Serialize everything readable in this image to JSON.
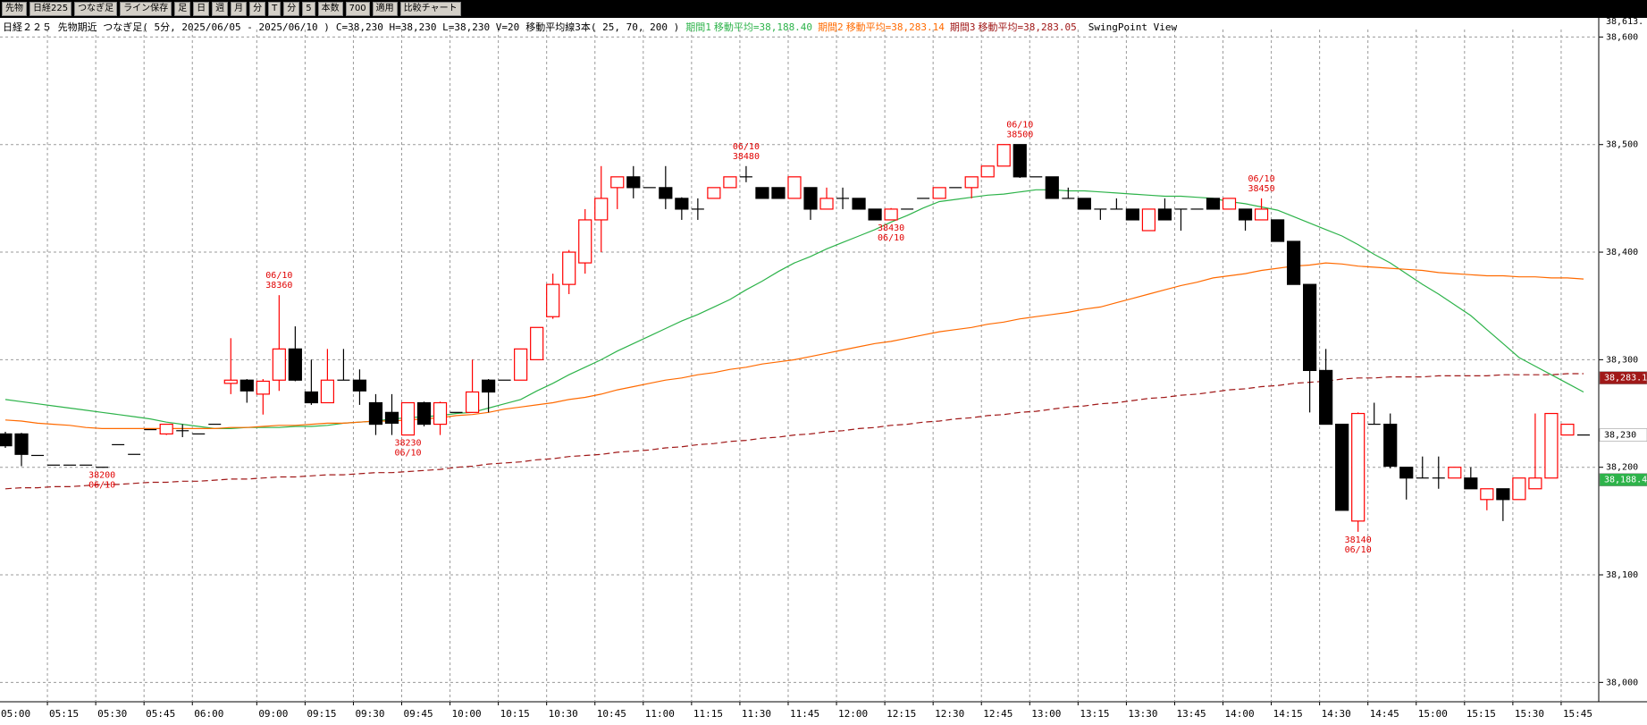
{
  "toolbar": {
    "items": [
      "先物",
      "日経225",
      "つなぎ足",
      "ライン保存",
      "足",
      "日",
      "週",
      "月",
      "分",
      "T",
      "分",
      "5",
      "本数",
      "700",
      "適用",
      "比較チャート"
    ]
  },
  "chart_data": {
    "type": "candlestick",
    "title": "日経２２５ 先物期近 つなぎ足( 5分, 2025/06/05 - 2025/06/10 )",
    "subtitle": "C=38,230 H=38,230 L=38,230 V=20",
    "indicator": "移動平均線3本( 25, 70, 200 )",
    "view": "SwingPoint View",
    "top_label": "38,613.",
    "up_color": "#ff0000",
    "down_color": "#000000",
    "ylim": [
      37982,
      38602
    ],
    "yticks": [
      {
        "value": 38000,
        "label": "38,000"
      },
      {
        "value": 38100,
        "label": "38,100"
      },
      {
        "value": 38200,
        "label": "38,200"
      },
      {
        "value": 38300,
        "label": "38,300"
      },
      {
        "value": 38400,
        "label": "38,400"
      },
      {
        "value": 38500,
        "label": "38,500"
      },
      {
        "value": 38600,
        "label": "38,600"
      }
    ],
    "grid": true,
    "categories": [
      "05:00",
      null,
      null,
      "05:15",
      null,
      null,
      "05:30",
      null,
      null,
      "05:45",
      null,
      null,
      "06:00",
      null,
      null,
      null,
      "09:00",
      null,
      null,
      "09:15",
      null,
      null,
      "09:30",
      null,
      null,
      "09:45",
      null,
      null,
      "10:00",
      null,
      null,
      "10:15",
      null,
      null,
      "10:30",
      null,
      null,
      "10:45",
      null,
      null,
      "11:00",
      null,
      null,
      "11:15",
      null,
      null,
      "11:30",
      null,
      null,
      "11:45",
      null,
      null,
      "12:00",
      null,
      null,
      "12:15",
      null,
      null,
      "12:30",
      null,
      null,
      "12:45",
      null,
      null,
      "13:00",
      null,
      null,
      "13:15",
      null,
      null,
      "13:30",
      null,
      null,
      "13:45",
      null,
      null,
      "14:00",
      null,
      null,
      "14:15",
      null,
      null,
      "14:30",
      null,
      null,
      "14:45",
      null,
      null,
      "15:00",
      null,
      null,
      "15:15",
      null,
      null,
      "15:30",
      null,
      null,
      "15:45",
      null
    ],
    "open": [
      38231,
      38231,
      38211,
      38202,
      38202,
      38202,
      38200,
      38221,
      38212,
      38235,
      38231,
      38234,
      38231,
      38240,
      38278,
      38281,
      38268,
      38281,
      38310,
      38270,
      38260,
      38281,
      38281,
      38260,
      38251,
      38230,
      38260,
      38240,
      38251,
      38251,
      38281,
      38281,
      38281,
      38300,
      38340,
      38370,
      38390,
      38430,
      38460,
      38470,
      38460,
      38460,
      38450,
      38440,
      38450,
      38460,
      38470,
      38460,
      38460,
      38450,
      38460,
      38440,
      38450,
      38450,
      38440,
      38430,
      38440,
      38450,
      38450,
      38460,
      38460,
      38470,
      38480,
      38500,
      38470,
      38470,
      38450,
      38450,
      38440,
      38440,
      38440,
      38420,
      38440,
      38440,
      38440,
      38450,
      38440,
      38440,
      38430,
      38430,
      38410,
      38370,
      38290,
      38240,
      38150,
      38240,
      38240,
      38200,
      38190,
      38190,
      38190,
      38190,
      38170,
      38180,
      38170,
      38180,
      38190,
      38230,
      38230
    ],
    "high": [
      38233,
      38232,
      38211,
      38202,
      38202,
      38202,
      38200,
      38221,
      38212,
      38235,
      38240,
      38240,
      38231,
      38240,
      38320,
      38282,
      38282,
      38360,
      38331,
      38300,
      38310,
      38310,
      38291,
      38268,
      38268,
      38260,
      38261,
      38261,
      38251,
      38300,
      38282,
      38281,
      38310,
      38330,
      38380,
      38402,
      38440,
      38480,
      38470,
      38480,
      38460,
      38480,
      38451,
      38450,
      38460,
      38470,
      38480,
      38460,
      38460,
      38470,
      38460,
      38460,
      38460,
      38450,
      38440,
      38441,
      38440,
      38450,
      38460,
      38460,
      38470,
      38480,
      38500,
      38500,
      38470,
      38470,
      38460,
      38450,
      38440,
      38450,
      38440,
      38440,
      38450,
      38440,
      38440,
      38450,
      38450,
      38440,
      38450,
      38430,
      38410,
      38370,
      38310,
      38240,
      38251,
      38260,
      38250,
      38200,
      38210,
      38210,
      38200,
      38200,
      38180,
      38180,
      38190,
      38250,
      38250,
      38240,
      38230
    ],
    "low": [
      38218,
      38201,
      38211,
      38202,
      38202,
      38202,
      38200,
      38221,
      38212,
      38235,
      38230,
      38228,
      38231,
      38240,
      38268,
      38260,
      38249,
      38271,
      38280,
      38258,
      38260,
      38281,
      38258,
      38230,
      38230,
      38230,
      38238,
      38230,
      38251,
      38251,
      38251,
      38281,
      38281,
      38300,
      38338,
      38361,
      38380,
      38400,
      38440,
      38450,
      38460,
      38440,
      38430,
      38430,
      38450,
      38460,
      38465,
      38450,
      38450,
      38450,
      38430,
      38440,
      38440,
      38440,
      38430,
      38430,
      38440,
      38450,
      38450,
      38460,
      38450,
      38470,
      38480,
      38469,
      38470,
      38450,
      38450,
      38440,
      38430,
      38440,
      38430,
      38420,
      38430,
      38420,
      38440,
      38440,
      38440,
      38420,
      38430,
      38410,
      38370,
      38251,
      38240,
      38160,
      38140,
      38240,
      38199,
      38170,
      38190,
      38180,
      38190,
      38180,
      38160,
      38150,
      38170,
      38180,
      38190,
      38230,
      38230
    ],
    "close": [
      38220,
      38212,
      38211,
      38202,
      38202,
      38202,
      38200,
      38221,
      38212,
      38235,
      38240,
      38234,
      38231,
      38240,
      38281,
      38271,
      38280,
      38310,
      38281,
      38260,
      38281,
      38281,
      38271,
      38240,
      38241,
      38260,
      38240,
      38260,
      38251,
      38270,
      38270,
      38281,
      38310,
      38330,
      38370,
      38400,
      38430,
      38450,
      38470,
      38460,
      38460,
      38450,
      38440,
      38440,
      38460,
      38470,
      38470,
      38450,
      38450,
      38470,
      38440,
      38450,
      38450,
      38440,
      38430,
      38440,
      38440,
      38450,
      38460,
      38460,
      38470,
      38480,
      38500,
      38470,
      38470,
      38450,
      38450,
      38440,
      38440,
      38440,
      38430,
      38440,
      38430,
      38440,
      38440,
      38440,
      38450,
      38430,
      38440,
      38410,
      38370,
      38290,
      38240,
      38160,
      38250,
      38240,
      38201,
      38190,
      38190,
      38190,
      38200,
      38180,
      38180,
      38170,
      38190,
      38190,
      38250,
      38240,
      38230
    ],
    "series": [
      {
        "name": "期間1",
        "label": "移動平均=38,188.40",
        "color": "#2db34a",
        "dashed": false,
        "values": [
          38263,
          38261,
          38259,
          38257,
          38255,
          38253,
          38251,
          38249,
          38247,
          38245,
          38242,
          38240,
          38238,
          38236,
          38236,
          38237,
          38237,
          38237,
          38238,
          38238,
          38239,
          38241,
          38242,
          38243,
          38245,
          38246,
          38247,
          38248,
          38250,
          38251,
          38255,
          38259,
          38263,
          38271,
          38278,
          38286,
          38293,
          38300,
          38308,
          38315,
          38322,
          38329,
          38336,
          38342,
          38349,
          38356,
          38365,
          38373,
          38382,
          38390,
          38396,
          38403,
          38409,
          38415,
          38421,
          38428,
          38434,
          38441,
          38447,
          38449,
          38451,
          38453,
          38454,
          38456,
          38458,
          38458,
          38457,
          38457,
          38456,
          38455,
          38454,
          38453,
          38452,
          38452,
          38451,
          38450,
          38447,
          38445,
          38442,
          38439,
          38433,
          38427,
          38421,
          38415,
          38407,
          38398,
          38390,
          38380,
          38370,
          38361,
          38351,
          38341,
          38328,
          38315,
          38302,
          38294,
          38286,
          38278,
          38270
        ]
      },
      {
        "name": "期間2",
        "label": "移動平均=38,283.14",
        "color": "#ff6a00",
        "dashed": false,
        "values": [
          38244,
          38243,
          38241,
          38240,
          38239,
          38237,
          38236,
          38236,
          38236,
          38236,
          38236,
          38236,
          38236,
          38236,
          38237,
          38237,
          38238,
          38239,
          38239,
          38240,
          38241,
          38241,
          38242,
          38243,
          38243,
          38244,
          38245,
          38246,
          38248,
          38249,
          38251,
          38254,
          38256,
          38258,
          38260,
          38263,
          38265,
          38268,
          38272,
          38275,
          38278,
          38281,
          38283,
          38286,
          38288,
          38291,
          38293,
          38296,
          38298,
          38300,
          38303,
          38306,
          38309,
          38312,
          38315,
          38317,
          38320,
          38323,
          38326,
          38328,
          38330,
          38333,
          38335,
          38338,
          38340,
          38342,
          38344,
          38347,
          38349,
          38353,
          38357,
          38361,
          38365,
          38369,
          38372,
          38376,
          38378,
          38380,
          38383,
          38385,
          38387,
          38388,
          38390,
          38389,
          38387,
          38386,
          38385,
          38384,
          38383,
          38381,
          38380,
          38379,
          38378,
          38378,
          38377,
          38377,
          38376,
          38376,
          38375
        ]
      },
      {
        "name": "期間3",
        "label": "移動平均=38,283.05",
        "color": "#a01818",
        "dashed": true,
        "values": [
          38180,
          38181,
          38181,
          38182,
          38182,
          38183,
          38184,
          38184,
          38185,
          38186,
          38186,
          38187,
          38187,
          38188,
          38189,
          38189,
          38190,
          38191,
          38191,
          38192,
          38193,
          38193,
          38194,
          38195,
          38195,
          38196,
          38197,
          38198,
          38200,
          38201,
          38203,
          38204,
          38205,
          38207,
          38208,
          38210,
          38211,
          38212,
          38214,
          38215,
          38216,
          38218,
          38219,
          38221,
          38222,
          38224,
          38225,
          38227,
          38228,
          38230,
          38231,
          38233,
          38234,
          38236,
          38237,
          38239,
          38240,
          38242,
          38243,
          38245,
          38246,
          38248,
          38249,
          38251,
          38252,
          38254,
          38256,
          38257,
          38259,
          38260,
          38262,
          38264,
          38265,
          38267,
          38268,
          38270,
          38272,
          38273,
          38275,
          38276,
          38278,
          38279,
          38280,
          38282,
          38283,
          38283,
          38284,
          38284,
          38284,
          38285,
          38285,
          38285,
          38285,
          38286,
          38286,
          38286,
          38286,
          38287,
          38287
        ]
      }
    ],
    "swing_points": [
      null,
      null,
      null,
      null,
      null,
      null,
      {
        "date": "06/10",
        "value": 38200,
        "side": "low"
      },
      null,
      null,
      null,
      null,
      null,
      null,
      null,
      null,
      null,
      null,
      {
        "date": "06/10",
        "value": 38360,
        "side": "high"
      },
      null,
      null,
      null,
      null,
      null,
      null,
      null,
      {
        "date": "06/10",
        "value": 38230,
        "side": "low"
      },
      null,
      null,
      null,
      null,
      null,
      null,
      null,
      null,
      null,
      null,
      null,
      null,
      null,
      null,
      null,
      null,
      null,
      null,
      null,
      null,
      {
        "date": "06/10",
        "value": 38480,
        "side": "high"
      },
      null,
      null,
      null,
      null,
      null,
      null,
      null,
      null,
      {
        "date": "06/10",
        "value": 38430,
        "side": "low"
      },
      null,
      null,
      null,
      null,
      null,
      null,
      null,
      {
        "date": "06/10",
        "value": 38500,
        "side": "high"
      },
      null,
      null,
      null,
      null,
      null,
      null,
      null,
      null,
      null,
      null,
      null,
      null,
      null,
      null,
      {
        "date": "06/10",
        "value": 38450,
        "side": "high"
      },
      null,
      null,
      null,
      null,
      null,
      {
        "date": "06/10",
        "value": 38140,
        "side": "low"
      },
      null,
      null,
      null,
      null,
      null,
      null,
      null,
      null,
      null,
      null,
      null,
      null,
      null,
      null
    ],
    "price_tags": [
      {
        "value": 38283.14,
        "label": "38,283.1",
        "color": "#a01818",
        "text_color": "#ffffff"
      },
      {
        "value": 38230,
        "label": "38,230",
        "color": "#ffffff",
        "text_color": "#000000"
      },
      {
        "value": 38188.4,
        "label": "38,188.4",
        "color": "#2db34a",
        "text_color": "#ffffff"
      }
    ]
  }
}
